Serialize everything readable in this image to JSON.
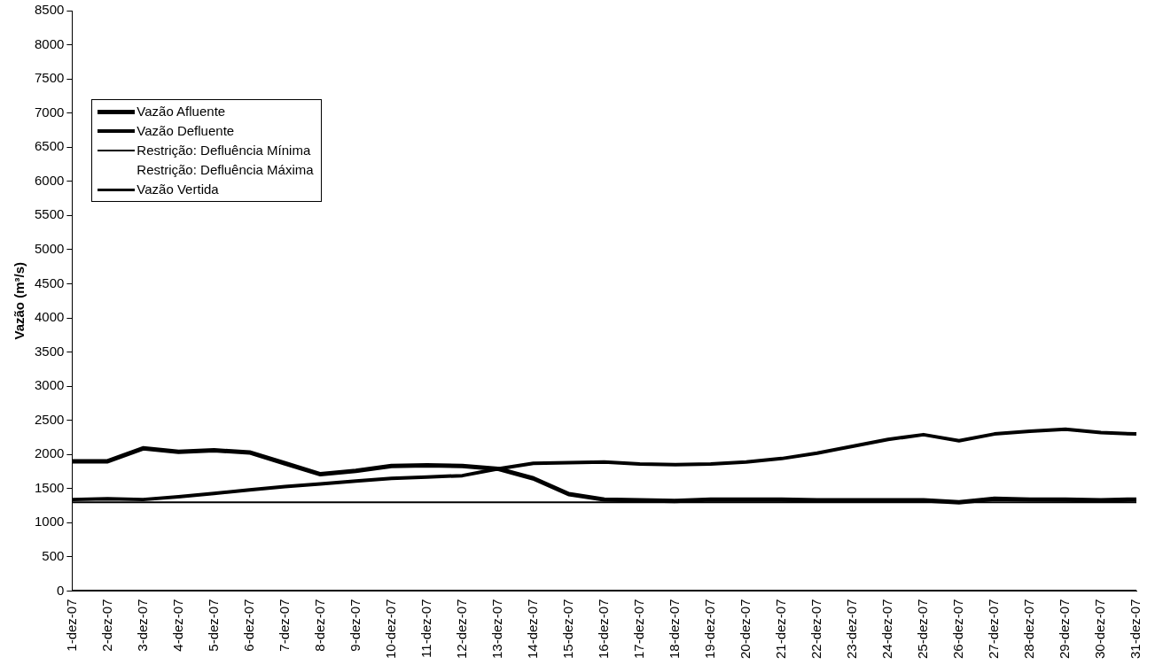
{
  "chart_data": {
    "type": "line",
    "ylabel": "Vazão (m³/s)",
    "categories": [
      "1-dez-07",
      "2-dez-07",
      "3-dez-07",
      "4-dez-07",
      "5-dez-07",
      "6-dez-07",
      "7-dez-07",
      "8-dez-07",
      "9-dez-07",
      "10-dez-07",
      "11-dez-07",
      "12-dez-07",
      "13-dez-07",
      "14-dez-07",
      "15-dez-07",
      "16-dez-07",
      "17-dez-07",
      "18-dez-07",
      "19-dez-07",
      "20-dez-07",
      "21-dez-07",
      "22-dez-07",
      "23-dez-07",
      "24-dez-07",
      "25-dez-07",
      "26-dez-07",
      "27-dez-07",
      "28-dez-07",
      "29-dez-07",
      "30-dez-07",
      "31-dez-07"
    ],
    "series": [
      {
        "name": "Vazão Afluente",
        "color": "#000000",
        "values": [
          1900,
          1900,
          2090,
          2040,
          2060,
          2030,
          1870,
          1710,
          1760,
          1830,
          1840,
          1830,
          1790,
          1650,
          1420,
          1340,
          1330,
          1320,
          1340,
          1340,
          1340,
          1330,
          1330,
          1330,
          1330,
          1300,
          1350,
          1340,
          1340,
          1330,
          1340
        ]
      },
      {
        "name": "Vazão Defluente",
        "color": "#000000",
        "values": [
          1340,
          1350,
          1340,
          1380,
          1430,
          1480,
          1530,
          1570,
          1610,
          1650,
          1670,
          1690,
          1790,
          1870,
          1880,
          1890,
          1860,
          1850,
          1860,
          1890,
          1940,
          2020,
          2120,
          2220,
          2290,
          2200,
          2300,
          2340,
          2370,
          2320,
          2300
        ]
      },
      {
        "name": "Restrição: Defluência Mínima",
        "color": "#000000",
        "values": [
          1300,
          1300,
          1300,
          1300,
          1300,
          1300,
          1300,
          1300,
          1300,
          1300,
          1300,
          1300,
          1300,
          1300,
          1300,
          1300,
          1300,
          1300,
          1300,
          1300,
          1300,
          1300,
          1300,
          1300,
          1300,
          1300,
          1300,
          1300,
          1300,
          1300,
          1300
        ]
      },
      {
        "name": "Restrição: Defluência Máxima",
        "values": [
          null,
          null,
          null,
          null,
          null,
          null,
          null,
          null,
          null,
          null,
          null,
          null,
          null,
          null,
          null,
          null,
          null,
          null,
          null,
          null,
          null,
          null,
          null,
          null,
          null,
          null,
          null,
          null,
          null,
          null,
          null
        ]
      },
      {
        "name": "Vazão Vertida",
        "color": "#000000",
        "values": [
          0,
          0,
          0,
          0,
          0,
          0,
          0,
          0,
          0,
          0,
          0,
          0,
          0,
          0,
          0,
          0,
          0,
          0,
          0,
          0,
          0,
          0,
          0,
          0,
          0,
          0,
          0,
          0,
          0,
          0,
          0
        ]
      }
    ],
    "ylim": [
      0,
      8500
    ],
    "yticks": [
      0,
      500,
      1000,
      1500,
      2000,
      2500,
      3000,
      3500,
      4000,
      4500,
      5000,
      5500,
      6000,
      6500,
      7000,
      7500,
      8000,
      8500
    ],
    "grid": false,
    "legend": "top left",
    "marker": "none",
    "line_style": "solid"
  }
}
